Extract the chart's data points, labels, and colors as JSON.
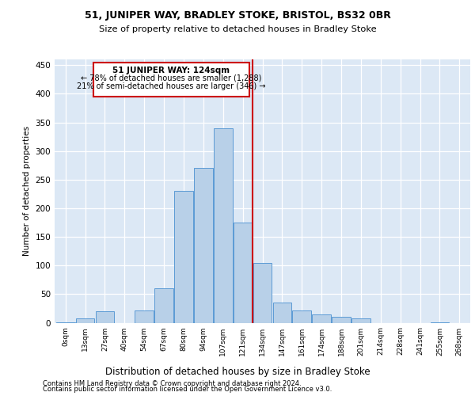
{
  "title1": "51, JUNIPER WAY, BRADLEY STOKE, BRISTOL, BS32 0BR",
  "title2": "Size of property relative to detached houses in Bradley Stoke",
  "xlabel": "Distribution of detached houses by size in Bradley Stoke",
  "ylabel": "Number of detached properties",
  "footer1": "Contains HM Land Registry data © Crown copyright and database right 2024.",
  "footer2": "Contains public sector information licensed under the Open Government Licence v3.0.",
  "annotation_line1": "51 JUNIPER WAY: 124sqm",
  "annotation_line2": "← 78% of detached houses are smaller (1,288)",
  "annotation_line3": "21% of semi-detached houses are larger (346) →",
  "bar_color": "#b8d0e8",
  "bar_edge_color": "#5b9bd5",
  "background_color": "#dce8f5",
  "vline_color": "#cc0000",
  "vline_x": 9.5,
  "categories": [
    "0sqm",
    "13sqm",
    "27sqm",
    "40sqm",
    "54sqm",
    "67sqm",
    "80sqm",
    "94sqm",
    "107sqm",
    "121sqm",
    "134sqm",
    "147sqm",
    "161sqm",
    "174sqm",
    "188sqm",
    "201sqm",
    "214sqm",
    "228sqm",
    "241sqm",
    "255sqm",
    "268sqm"
  ],
  "values": [
    1,
    8,
    20,
    0,
    22,
    60,
    230,
    270,
    340,
    175,
    105,
    35,
    22,
    15,
    10,
    8,
    0,
    0,
    0,
    1,
    0
  ],
  "ylim": [
    0,
    460
  ],
  "yticks": [
    0,
    50,
    100,
    150,
    200,
    250,
    300,
    350,
    400,
    450
  ]
}
